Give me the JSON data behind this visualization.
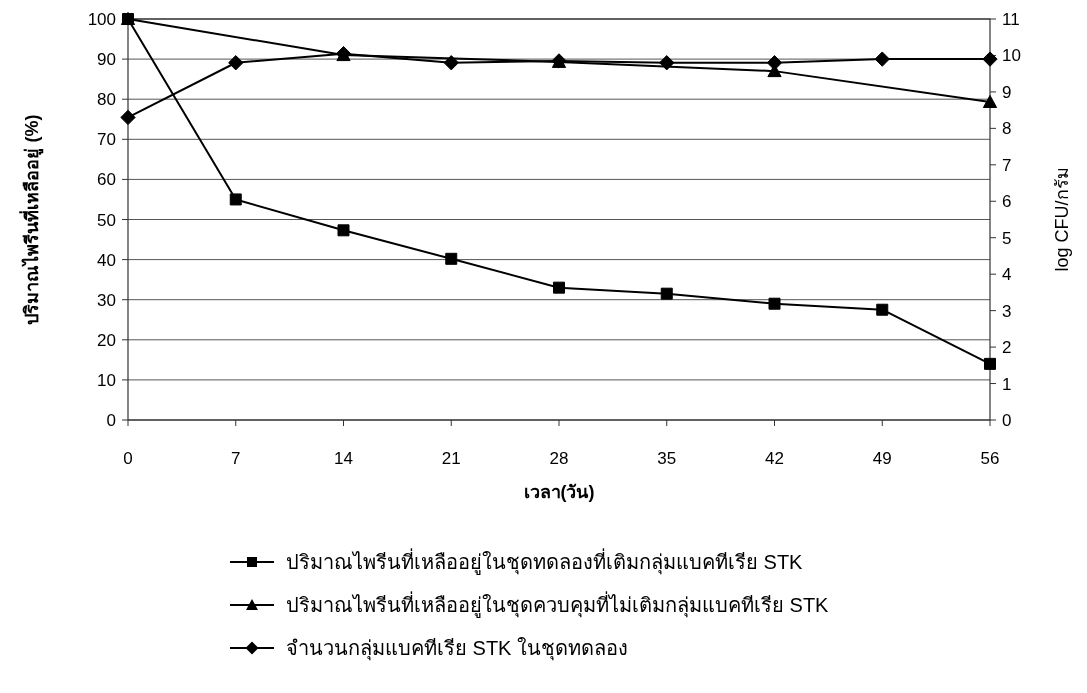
{
  "chart_data": {
    "type": "line",
    "xlabel": "เวลา(วัน)",
    "ylabel": "ปริมาณไพรีนที่เหลืออยู่ (%)",
    "y2label": "log CFU/กรัม",
    "x": [
      0,
      7,
      14,
      21,
      28,
      35,
      42,
      49,
      56
    ],
    "xlim": [
      0,
      56
    ],
    "xticks": [
      0,
      7,
      14,
      21,
      28,
      35,
      42,
      49,
      56
    ],
    "ylim": [
      0,
      100
    ],
    "yticks": [
      0,
      10,
      20,
      30,
      40,
      50,
      60,
      70,
      80,
      90,
      100
    ],
    "y2lim": [
      0,
      11
    ],
    "y2ticks": [
      0,
      1,
      2,
      3,
      4,
      5,
      6,
      7,
      8,
      9,
      10,
      11
    ],
    "grid": "y",
    "legend": "bottom",
    "series": [
      {
        "name": "ปริมาณไพรีนที่เหลืออยู่ในชุดทดลองที่เติมกลุ่มแบคทีเรีย STK",
        "color": "#000000",
        "marker": "square",
        "values": [
          100,
          55,
          47.3,
          40.2,
          33,
          31.5,
          29,
          27.5,
          14
        ]
      },
      {
        "name": "ปริมาณไพรีนที่เหลืออยู่ในชุดควบคุมที่ไม่เติมกลุ่มแบคทีเรีย STK",
        "color": "#000000",
        "marker": "triangle",
        "x": [
          0,
          14,
          28,
          42,
          56
        ],
        "values": [
          100,
          91,
          89.3,
          87,
          79.3
        ]
      },
      {
        "name": "จำนวนกลุ่มแบคทีเรีย STK ในชุดทดลอง",
        "color": "#000000",
        "marker": "diamond",
        "axis": "y2",
        "values": [
          8.3,
          9.8,
          10.05,
          9.8,
          9.85,
          9.8,
          9.8,
          9.9,
          9.9
        ]
      }
    ]
  }
}
